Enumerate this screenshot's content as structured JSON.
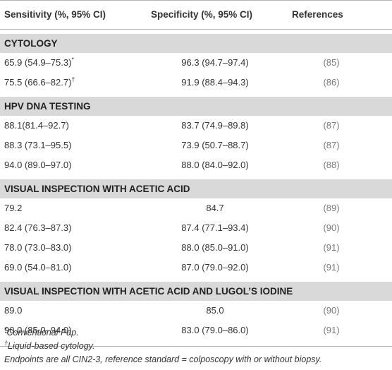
{
  "header": {
    "col1": "Sensitivity (%, 95% CI)",
    "col2": "Specificity (%, 95% CI)",
    "col3": "References"
  },
  "sections": [
    {
      "title": "CYTOLOGY",
      "rows": [
        {
          "sens": "65.9 (54.9–75.3)",
          "sens_mark": "*",
          "spec": "96.3 (94.7–97.4)",
          "ref": "(85)"
        },
        {
          "sens": "75.5 (66.6–82.7)",
          "sens_mark": "†",
          "spec": "91.9 (88.4–94.3)",
          "ref": "(86)"
        }
      ]
    },
    {
      "title": "HPV DNA TESTING",
      "rows": [
        {
          "sens": "88.1(81.4–92.7)",
          "sens_mark": "",
          "spec": "83.7 (74.9–89.8)",
          "ref": "(87)"
        },
        {
          "sens": "88.3 (73.1–95.5)",
          "sens_mark": "",
          "spec": "73.9 (50.7–88.7)",
          "ref": "(87)"
        },
        {
          "sens": "94.0 (89.0–97.0)",
          "sens_mark": "",
          "spec": "88.0 (84.0–92.0)",
          "ref": "(88)"
        }
      ]
    },
    {
      "title": "VISUAL INSPECTION WITH ACETIC ACID",
      "rows": [
        {
          "sens": "79.2",
          "sens_mark": "",
          "spec": "84.7",
          "ref": "(89)"
        },
        {
          "sens": "82.4 (76.3–87.3)",
          "sens_mark": "",
          "spec": "87.4 (77.1–93.4)",
          "ref": "(90)"
        },
        {
          "sens": "78.0 (73.0–83.0)",
          "sens_mark": "",
          "spec": "88.0 (85.0–91.0)",
          "ref": "(91)"
        },
        {
          "sens": "69.0 (54.0–81.0)",
          "sens_mark": "",
          "spec": "87.0 (79.0–92.0)",
          "ref": "(91)"
        }
      ]
    },
    {
      "title": "VISUAL INSPECTION WITH ACETIC ACID AND LUGOL’S IODINE",
      "rows": [
        {
          "sens": "89.0",
          "sens_mark": "",
          "spec": "85.0",
          "ref": "(90)"
        },
        {
          "sens": "90.0 (85.0–94.0)",
          "sens_mark": "",
          "spec": "83.0 (79.0–86.0)",
          "ref": "(91)"
        }
      ]
    }
  ],
  "footnotes": {
    "note1_mark": "*",
    "note1_text": "Conventional Pap.",
    "note2_mark": "†",
    "note2_text": "Liquid-based cytology.",
    "note3_text": "Endpoints are all CIN2-3, reference standard = colposcopy with or without biopsy."
  }
}
